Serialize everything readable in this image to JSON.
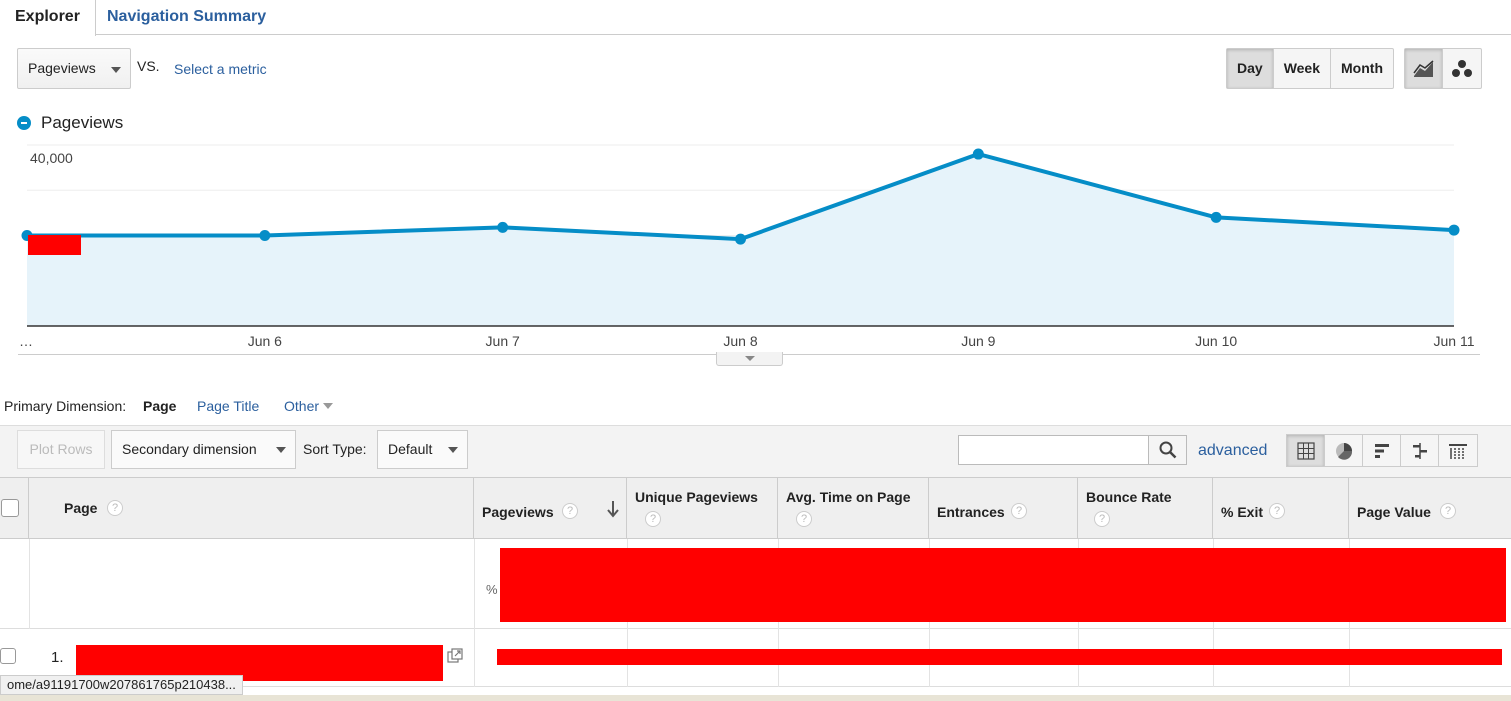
{
  "tabs": {
    "explorer": "Explorer",
    "navigation_summary": "Navigation Summary"
  },
  "metric": {
    "selected": "Pageviews",
    "vs": "VS.",
    "select_metric": "Select a metric"
  },
  "period_buttons": [
    "Day",
    "Week",
    "Month"
  ],
  "period_selected": "Day",
  "chart_type_selected": "line",
  "chart_data": {
    "type": "area",
    "legend": [
      "Pageviews"
    ],
    "series": [
      {
        "name": "Pageviews",
        "x": [
          "…",
          "Jun 6",
          "Jun 7",
          "Jun 8",
          "Jun 9",
          "Jun 10",
          "Jun 11"
        ],
        "values": [
          20000,
          20000,
          21800,
          19200,
          38000,
          24000,
          21200
        ]
      }
    ],
    "y_ticks": [
      "40,000"
    ],
    "ylim": [
      0,
      40000
    ],
    "color": "#058dc7",
    "fill": "#e6f3fa",
    "grid": true
  },
  "dimension": {
    "label": "Primary Dimension:",
    "selected": "Page",
    "options": [
      "Page Title",
      "Other"
    ]
  },
  "toolbar": {
    "plot_rows": "Plot Rows",
    "secondary_dimension": "Secondary dimension",
    "sort_type_label": "Sort Type:",
    "sort_type_value": "Default",
    "search_value": "",
    "advanced": "advanced"
  },
  "table": {
    "columns": [
      "Page",
      "Pageviews",
      "Unique Pageviews",
      "Avg. Time on Page",
      "Entrances",
      "Bounce Rate",
      "% Exit",
      "Page Value"
    ],
    "total_row_percent": "%",
    "rows": [
      {
        "index": "1."
      }
    ]
  },
  "status_url": "ome/a91191700w207861765p210438..."
}
